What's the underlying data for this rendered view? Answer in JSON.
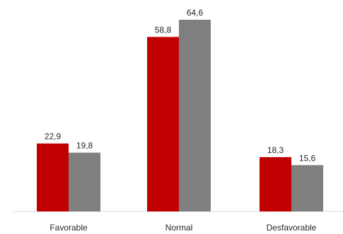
{
  "chart_data": {
    "type": "bar",
    "categories": [
      "Favorable",
      "Normal",
      "Desfavorable"
    ],
    "series": [
      {
        "values": [
          22.9,
          58.8,
          18.3
        ],
        "labels": [
          "22,9",
          "58,8",
          "18,3"
        ],
        "color": "#c00000"
      },
      {
        "values": [
          19.8,
          64.6,
          15.6
        ],
        "labels": [
          "19,8",
          "64,6",
          "15,6"
        ],
        "color": "#7f7f7f"
      }
    ],
    "title": "",
    "xlabel": "",
    "ylabel": "",
    "ylim": [
      0,
      70
    ],
    "grid": false,
    "legend": "none"
  }
}
